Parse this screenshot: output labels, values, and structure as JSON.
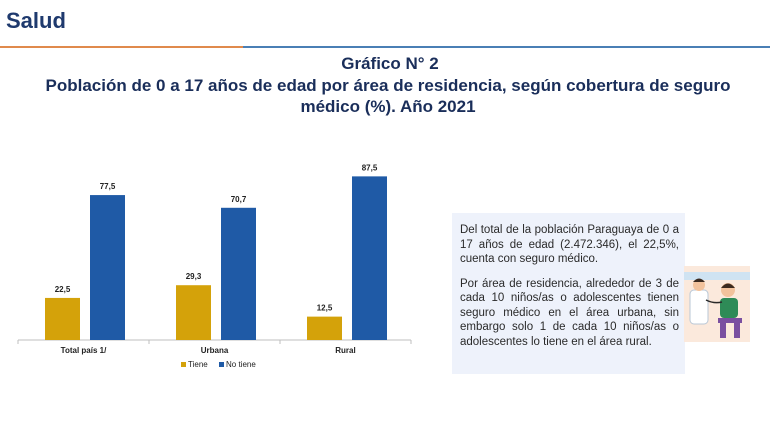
{
  "header": {
    "section": "Salud",
    "figure_number": "Gráfico N° 2",
    "figure_title": "Población de 0 a 17 años de edad por área de residencia, según cobertura de seguro médico (%). Año 2021"
  },
  "colors": {
    "tiene": "#d4a20a",
    "no_tiene": "#1f5aa6",
    "accent_orange": "#e08a4c",
    "accent_blue": "#4a7fb5"
  },
  "chart_data": {
    "type": "bar",
    "categories": [
      "Total país 1/",
      "Urbana",
      "Rural"
    ],
    "series": [
      {
        "name": "Tiene",
        "values": [
          22.5,
          29.3,
          12.5
        ],
        "labels": [
          "22,5",
          "29,3",
          "12,5"
        ]
      },
      {
        "name": "No tiene",
        "values": [
          77.5,
          70.7,
          87.5
        ],
        "labels": [
          "77,5",
          "70,7",
          "87,5"
        ]
      }
    ],
    "ylim": [
      0,
      100
    ],
    "grid": false,
    "legend_position": "bottom"
  },
  "info": {
    "paragraph1": "Del total de la población Paraguaya de 0 a 17 años de edad (2.472.346), el 22,5%, cuenta con seguro médico.",
    "paragraph2": "Por área de residencia, alrededor de 3 de cada 10 niños/as o adolescentes tienen seguro médico en el área urbana, sin embargo solo 1 de cada 10 niños/as o adolescentes lo tiene en el área rural."
  }
}
